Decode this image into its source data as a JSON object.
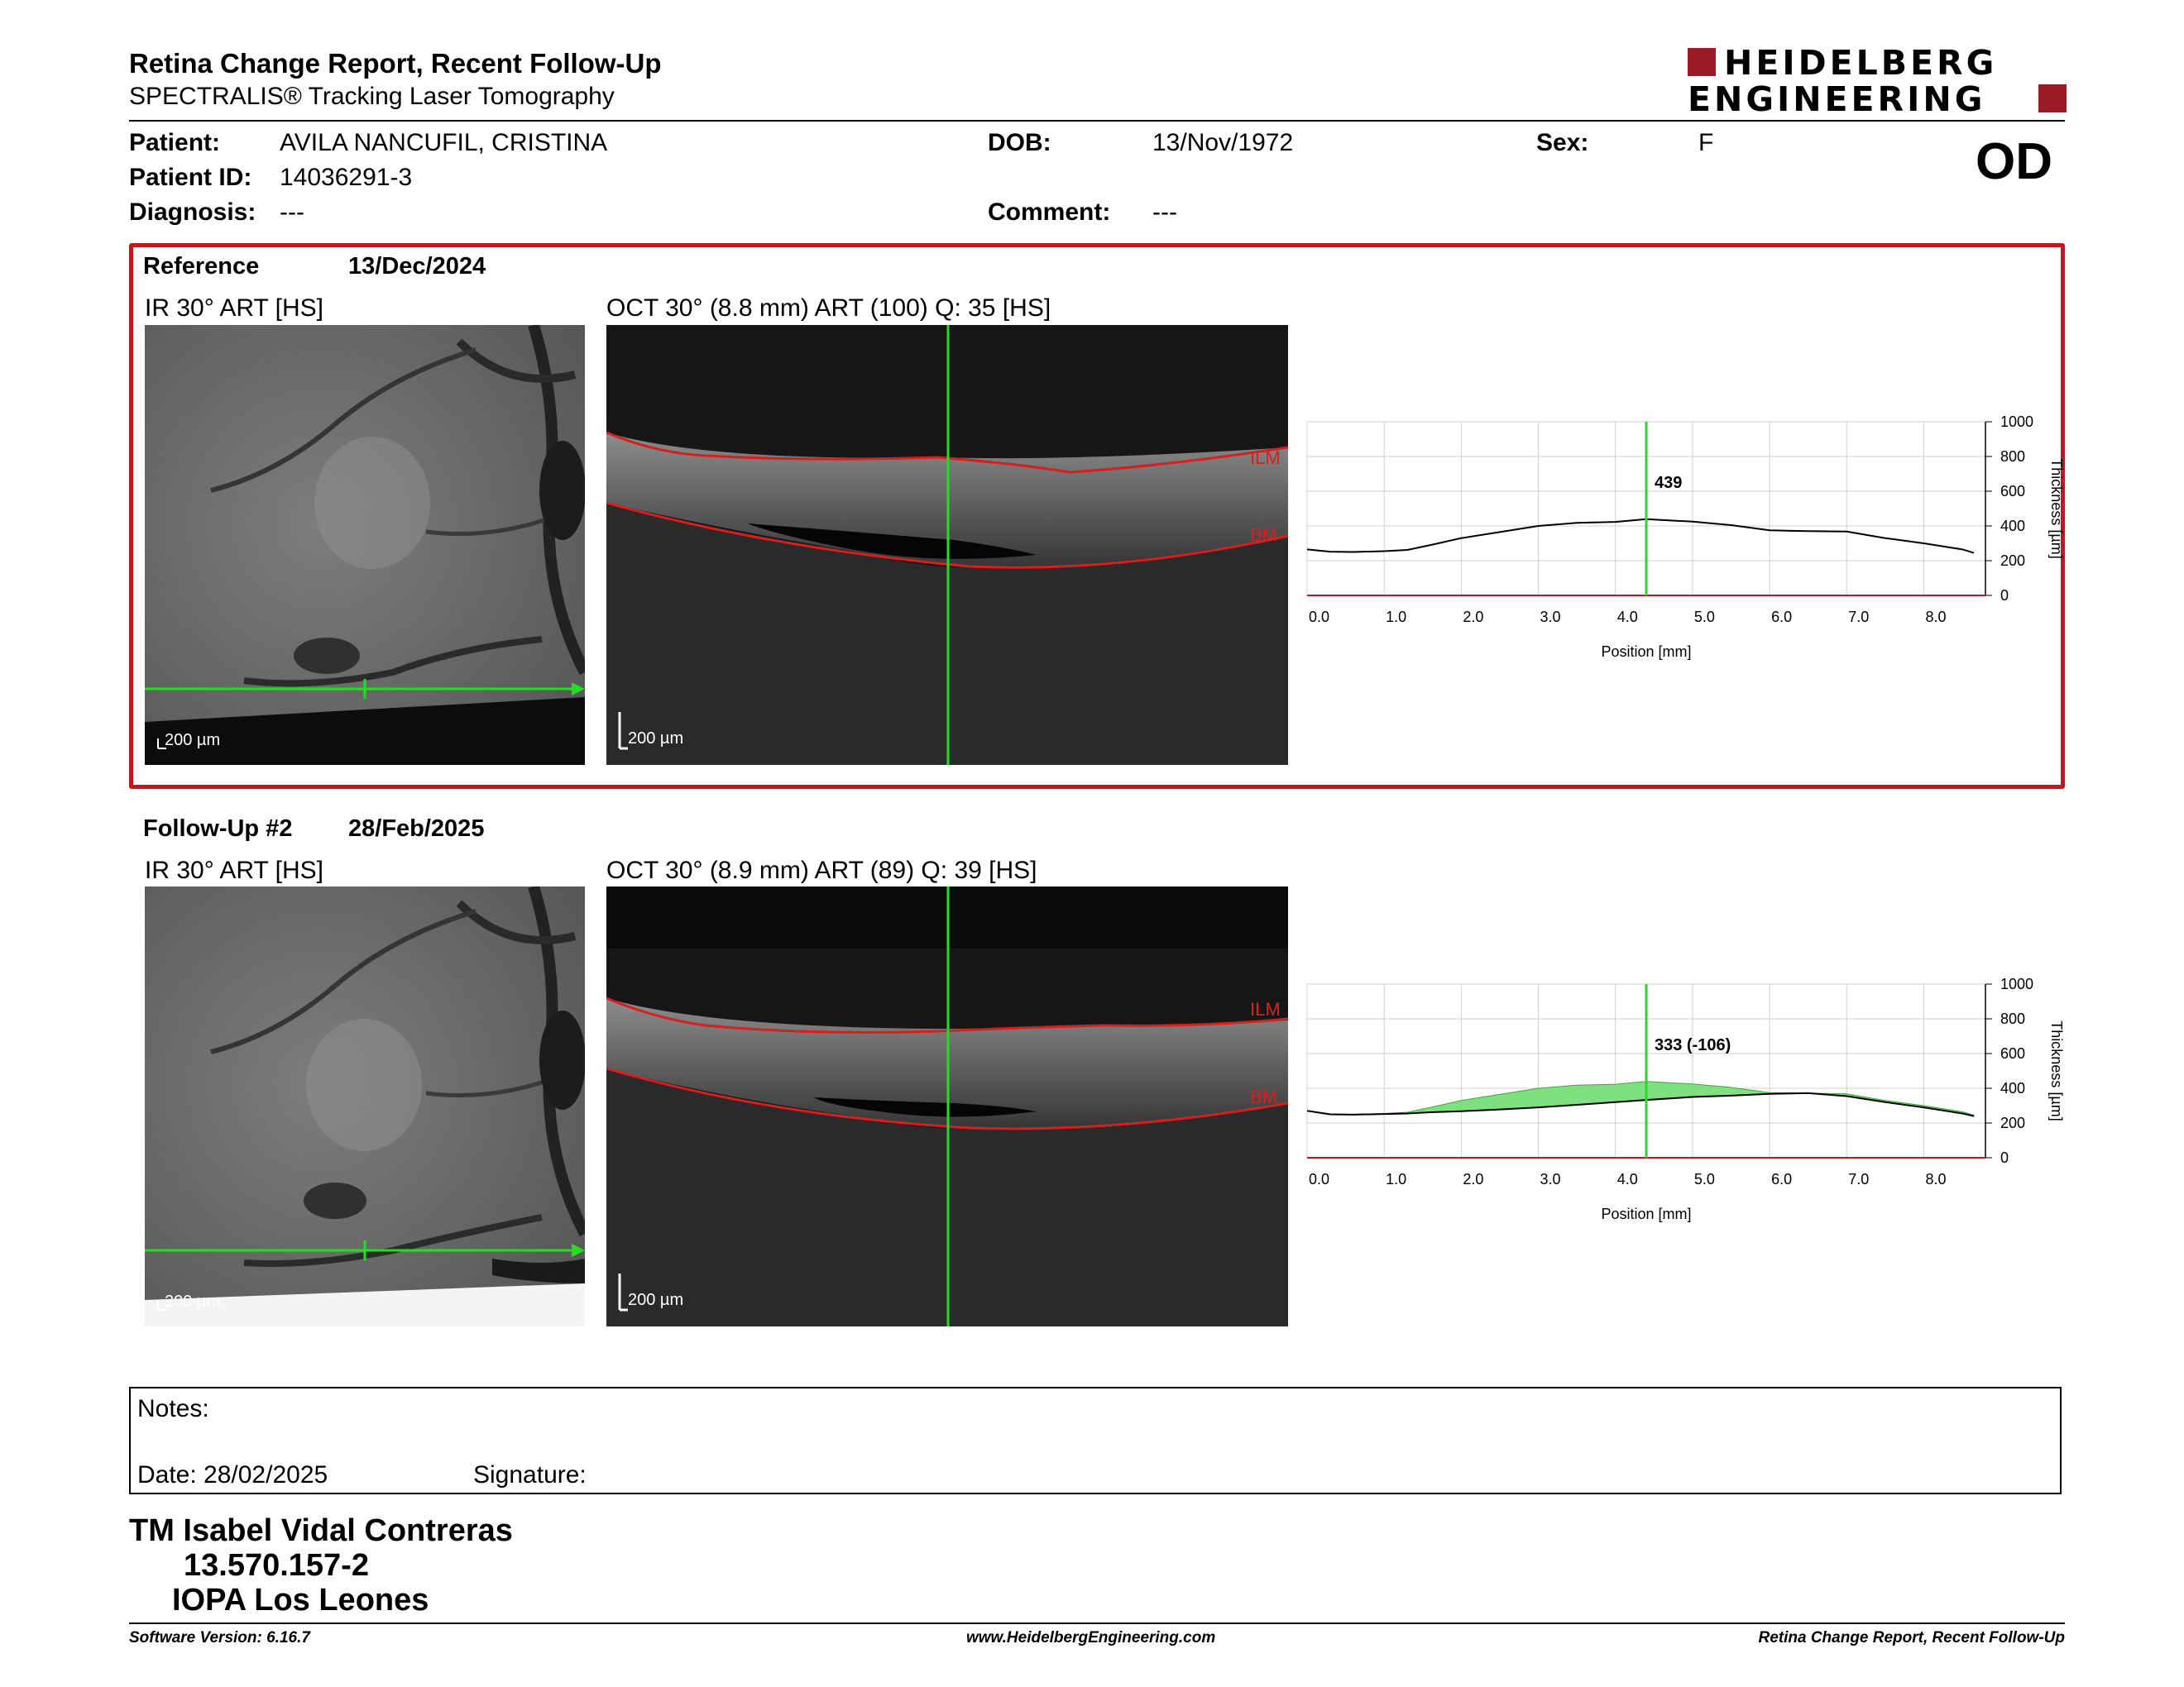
{
  "header": {
    "title": "Retina Change Report, Recent Follow-Up",
    "subtitle": "SPECTRALIS® Tracking Laser Tomography",
    "logo_line1": "HEIDELBERG",
    "logo_line2": "ENGINEERING"
  },
  "patient": {
    "patient_label": "Patient:",
    "patient_value": "AVILA NANCUFIL, CRISTINA",
    "id_label": "Patient ID:",
    "id_value": "14036291-3",
    "diagnosis_label": "Diagnosis:",
    "diagnosis_value": "---",
    "dob_label": "DOB:",
    "dob_value": "13/Nov/1972",
    "comment_label": "Comment:",
    "comment_value": "---",
    "sex_label": "Sex:",
    "sex_value": "F",
    "eye": "OD"
  },
  "reference": {
    "label": "Reference",
    "date": "13/Dec/2024",
    "ir_title": "IR 30° ART [HS]",
    "oct_title": "OCT 30° (8.8 mm) ART (100) Q: 35 [HS]",
    "scale": "200 µm",
    "ilm": "ILM",
    "bm": "BM",
    "cursor_value": "439"
  },
  "followup": {
    "label": "Follow-Up #2",
    "date": "28/Feb/2025",
    "ir_title": "IR 30° ART [HS]",
    "oct_title": "OCT 30° (8.9 mm) ART (89) Q: 39 [HS]",
    "scale": "200 µm",
    "ilm": "ILM",
    "bm": "BM",
    "cursor_value": "333 (-106)"
  },
  "chart_data": [
    {
      "type": "line",
      "xlabel": "Position [mm]",
      "ylabel": "Thickness [µm]",
      "xlim": [
        0,
        8.8
      ],
      "ylim": [
        0,
        1000
      ],
      "xticks": [
        "0.0",
        "1.0",
        "2.0",
        "3.0",
        "4.0",
        "5.0",
        "6.0",
        "7.0",
        "8.0"
      ],
      "yticks": [
        "0",
        "200",
        "400",
        "600",
        "800",
        "1000"
      ],
      "cursor_x": 4.4,
      "cursor_label": "439",
      "series": [
        {
          "x": [
            0,
            0.3,
            0.6,
            1.0,
            1.3,
            1.6,
            2.0,
            2.5,
            3.0,
            3.5,
            4.0,
            4.4,
            5.0,
            5.5,
            6.0,
            6.5,
            7.0,
            7.5,
            8.0,
            8.5,
            8.65
          ],
          "y": [
            265,
            252,
            250,
            255,
            262,
            290,
            330,
            365,
            400,
            418,
            423,
            439,
            425,
            405,
            375,
            370,
            368,
            330,
            300,
            265,
            245
          ]
        }
      ]
    },
    {
      "type": "line",
      "xlabel": "Position [mm]",
      "ylabel": "Thickness [µm]",
      "xlim": [
        0,
        8.8
      ],
      "ylim": [
        0,
        1000
      ],
      "xticks": [
        "0.0",
        "1.0",
        "2.0",
        "3.0",
        "4.0",
        "5.0",
        "6.0",
        "7.0",
        "8.0"
      ],
      "yticks": [
        "0",
        "200",
        "400",
        "600",
        "800",
        "1000"
      ],
      "cursor_x": 4.4,
      "cursor_label": "333 (-106)",
      "series": [
        {
          "x": [
            0,
            0.3,
            0.6,
            1.0,
            1.3,
            1.6,
            2.0,
            2.5,
            3.0,
            3.5,
            4.0,
            4.4,
            5.0,
            5.5,
            6.0,
            6.5,
            7.0,
            7.5,
            8.0,
            8.5,
            8.65
          ],
          "y": [
            270,
            250,
            248,
            252,
            255,
            262,
            268,
            278,
            290,
            305,
            320,
            333,
            350,
            358,
            368,
            372,
            355,
            320,
            290,
            255,
            240
          ]
        },
        {
          "x": [
            0,
            0.3,
            0.6,
            1.0,
            1.3,
            1.6,
            2.0,
            2.5,
            3.0,
            3.5,
            4.0,
            4.4,
            5.0,
            5.5,
            6.0,
            6.5,
            7.0,
            7.5,
            8.0,
            8.5,
            8.65
          ],
          "y": [
            265,
            252,
            250,
            255,
            262,
            290,
            330,
            365,
            400,
            418,
            423,
            439,
            425,
            405,
            375,
            370,
            368,
            330,
            300,
            265,
            245
          ]
        }
      ]
    }
  ],
  "notes": {
    "label": "Notes:",
    "date_label": "Date: 28/02/2025",
    "signature_label": "Signature:"
  },
  "signer": {
    "name": "TM Isabel Vidal Contreras",
    "id": "13.570.157-2",
    "org": "IOPA Los Leones"
  },
  "footer": {
    "left": "Software Version: 6.16.7",
    "center": "www.HeidelbergEngineering.com",
    "right": "Retina Change Report, Recent Follow-Up"
  },
  "colors": {
    "accent_red": "#c4161c",
    "cursor_green": "#22dd22",
    "fill_green": "#7fe07f"
  }
}
